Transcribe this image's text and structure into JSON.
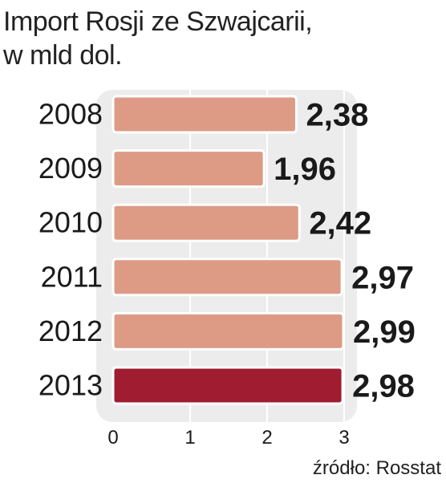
{
  "title": {
    "line1": "Import Rosji ze Szwajcarii,",
    "line2": "w mld dol."
  },
  "source": "źródło: Rosstat",
  "colors": {
    "bar": "#dd9b86",
    "bar_highlight": "#a01c30",
    "panel": "#ececec",
    "grid": "#ffffff",
    "text": "#1a1a1a"
  },
  "chart_data": {
    "type": "bar",
    "orientation": "horizontal",
    "categories": [
      "2008",
      "2009",
      "2010",
      "2011",
      "2012",
      "2013"
    ],
    "values": [
      2.38,
      1.96,
      2.42,
      2.97,
      2.99,
      2.98
    ],
    "value_labels": [
      "2,38",
      "1,96",
      "2,42",
      "2,97",
      "2,99",
      "2,98"
    ],
    "highlight": [
      "2013"
    ],
    "xlim": [
      0,
      3
    ],
    "xticks": [
      0,
      1,
      2,
      3
    ],
    "xtick_labels": [
      "0",
      "1",
      "2",
      "3"
    ],
    "grid": true,
    "title": "Import Rosji ze Szwajcarii, w mld dol.",
    "xlabel": "",
    "ylabel": ""
  }
}
